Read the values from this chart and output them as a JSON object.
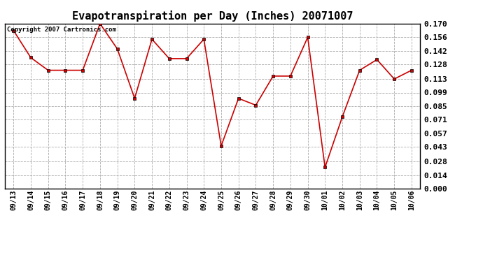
{
  "title": "Evapotranspiration per Day (Inches) 20071007",
  "copyright_text": "Copyright 2007 Cartronics.com",
  "x_labels": [
    "09/13",
    "09/14",
    "09/15",
    "09/16",
    "09/17",
    "09/18",
    "09/19",
    "09/20",
    "09/21",
    "09/22",
    "09/23",
    "09/24",
    "09/25",
    "09/26",
    "09/27",
    "09/28",
    "09/29",
    "09/30",
    "10/01",
    "10/02",
    "10/03",
    "10/04",
    "10/05",
    "10/06"
  ],
  "y_values": [
    0.163,
    0.135,
    0.122,
    0.122,
    0.122,
    0.17,
    0.144,
    0.093,
    0.154,
    0.134,
    0.134,
    0.154,
    0.044,
    0.093,
    0.086,
    0.116,
    0.116,
    0.156,
    0.022,
    0.074,
    0.122,
    0.133,
    0.113,
    0.122
  ],
  "line_color": "#cc0000",
  "marker": "s",
  "marker_size": 2.5,
  "ylim": [
    0.0,
    0.17
  ],
  "yticks": [
    0.0,
    0.014,
    0.028,
    0.043,
    0.057,
    0.071,
    0.085,
    0.099,
    0.113,
    0.128,
    0.142,
    0.156,
    0.17
  ],
  "background_color": "#ffffff",
  "grid_color": "#aaaaaa",
  "title_fontsize": 11,
  "tick_fontsize": 7,
  "copyright_fontsize": 6.5
}
